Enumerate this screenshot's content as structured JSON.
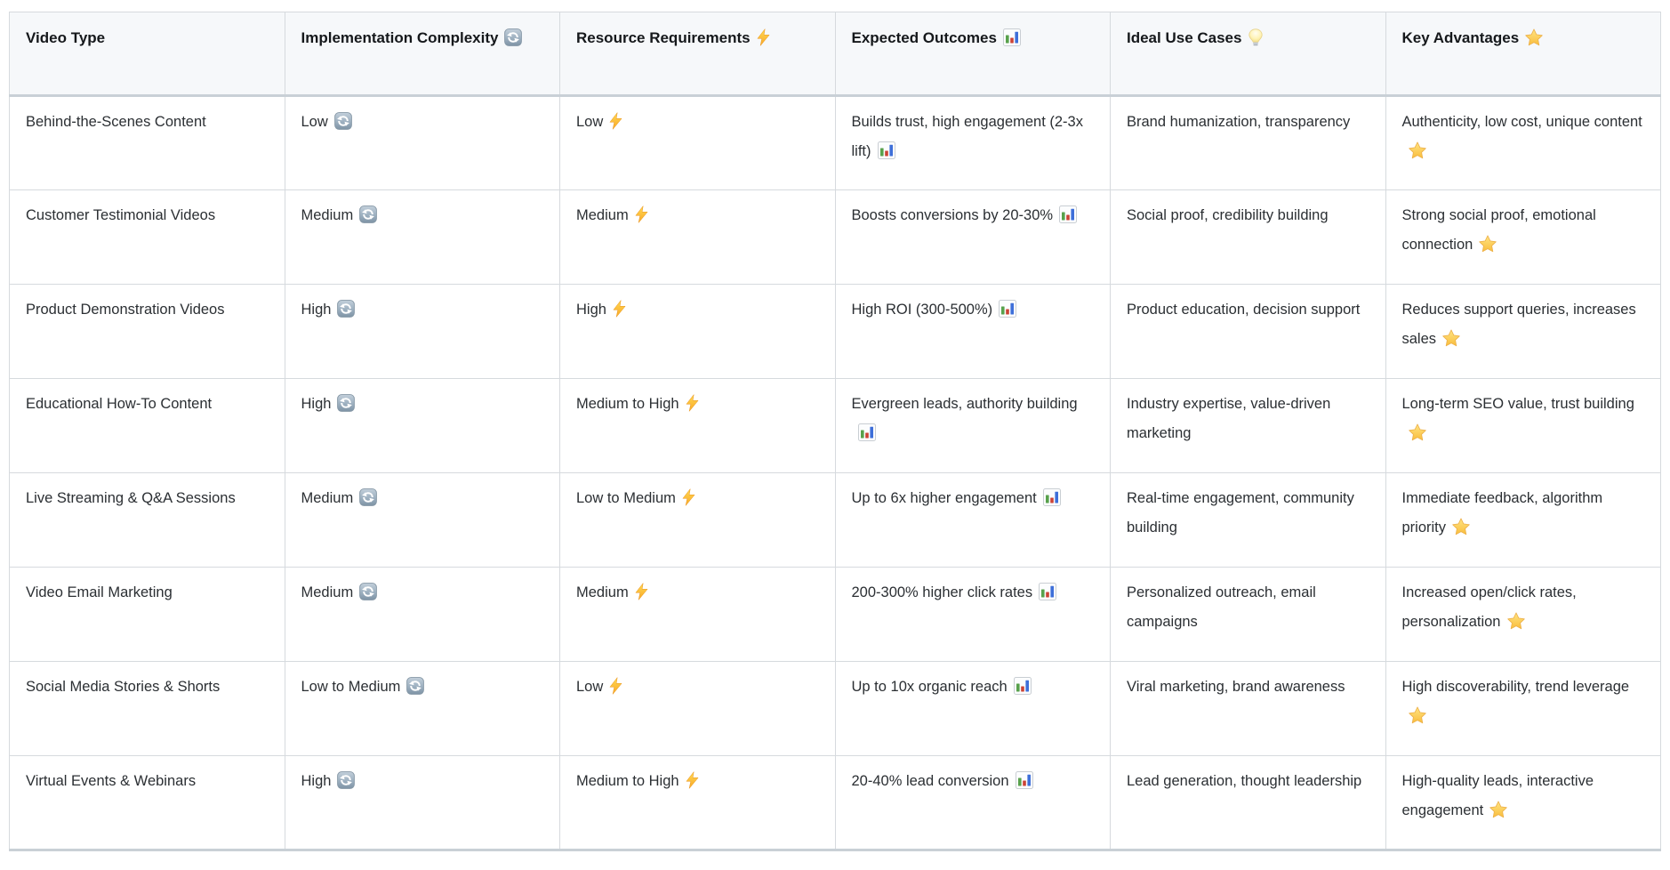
{
  "page": {
    "background": "#ffffff"
  },
  "colors": {
    "header_bg": "#f6f8fa",
    "border": "#d6dade",
    "border_heavy": "#c9d0d6",
    "header_text": "#15181b",
    "body_text": "#2b2f33",
    "refresh_icon_fill": "#9db0c0",
    "lightning_icon_fill": "#f9a825",
    "chart_bar_green": "#58a14c",
    "chart_bar_red": "#cb4335",
    "chart_bar_blue": "#3e6fd9",
    "bulb_icon_fill": "#fff3b8",
    "star_icon_fill": "#f9bd3c"
  },
  "table": {
    "columns": [
      {
        "key": "video-type",
        "label": "Video Type",
        "icon": null
      },
      {
        "key": "implementation-complexity",
        "label": "Implementation Complexity",
        "icon": "refresh-icon"
      },
      {
        "key": "resource-requirements",
        "label": "Resource Requirements",
        "icon": "lightning-icon"
      },
      {
        "key": "expected-outcomes",
        "label": "Expected Outcomes",
        "icon": "bar-chart-icon"
      },
      {
        "key": "ideal-use-cases",
        "label": "Ideal Use Cases",
        "icon": "bulb-icon"
      },
      {
        "key": "key-advantages",
        "label": "Key Advantages",
        "icon": "star-icon"
      }
    ],
    "rows": [
      {
        "cells": [
          {
            "text": "Behind-the-Scenes Content",
            "icon": null
          },
          {
            "text": "Low",
            "icon": "refresh-icon"
          },
          {
            "text": "Low",
            "icon": "lightning-icon"
          },
          {
            "text": "Builds trust, high engagement (2-3x lift)",
            "icon": "bar-chart-icon"
          },
          {
            "text": "Brand humanization, transparency",
            "icon": null
          },
          {
            "text": "Authenticity, low cost, unique content",
            "icon": "star-icon"
          }
        ]
      },
      {
        "cells": [
          {
            "text": "Customer Testimonial Videos",
            "icon": null
          },
          {
            "text": "Medium",
            "icon": "refresh-icon"
          },
          {
            "text": "Medium",
            "icon": "lightning-icon"
          },
          {
            "text": "Boosts conversions by 20-30%",
            "icon": "bar-chart-icon"
          },
          {
            "text": "Social proof, credibility building",
            "icon": null
          },
          {
            "text": "Strong social proof, emotional connection",
            "icon": "star-icon"
          }
        ]
      },
      {
        "cells": [
          {
            "text": "Product Demonstration Videos",
            "icon": null
          },
          {
            "text": "High",
            "icon": "refresh-icon"
          },
          {
            "text": "High",
            "icon": "lightning-icon"
          },
          {
            "text": "High ROI (300-500%)",
            "icon": "bar-chart-icon"
          },
          {
            "text": "Product education, decision support",
            "icon": null
          },
          {
            "text": "Reduces support queries, increases sales",
            "icon": "star-icon"
          }
        ]
      },
      {
        "cells": [
          {
            "text": "Educational How-To Content",
            "icon": null
          },
          {
            "text": "High",
            "icon": "refresh-icon"
          },
          {
            "text": "Medium to High",
            "icon": "lightning-icon"
          },
          {
            "text": "Evergreen leads, authority building",
            "icon": "bar-chart-icon"
          },
          {
            "text": "Industry expertise, value-driven marketing",
            "icon": null
          },
          {
            "text": "Long-term SEO value, trust building",
            "icon": "star-icon"
          }
        ]
      },
      {
        "cells": [
          {
            "text": "Live Streaming & Q&A Sessions",
            "icon": null
          },
          {
            "text": "Medium",
            "icon": "refresh-icon"
          },
          {
            "text": "Low to Medium",
            "icon": "lightning-icon"
          },
          {
            "text": "Up to 6x higher engagement",
            "icon": "bar-chart-icon"
          },
          {
            "text": "Real-time engagement, community building",
            "icon": null
          },
          {
            "text": "Immediate feedback, algorithm priority",
            "icon": "star-icon"
          }
        ]
      },
      {
        "cells": [
          {
            "text": "Video Email Marketing",
            "icon": null
          },
          {
            "text": "Medium",
            "icon": "refresh-icon"
          },
          {
            "text": "Medium",
            "icon": "lightning-icon"
          },
          {
            "text": "200-300% higher click rates",
            "icon": "bar-chart-icon"
          },
          {
            "text": "Personalized outreach, email campaigns",
            "icon": null
          },
          {
            "text": "Increased open/click rates, personalization",
            "icon": "star-icon"
          }
        ]
      },
      {
        "cells": [
          {
            "text": "Social Media Stories & Shorts",
            "icon": null
          },
          {
            "text": "Low to Medium",
            "icon": "refresh-icon"
          },
          {
            "text": "Low",
            "icon": "lightning-icon"
          },
          {
            "text": "Up to 10x organic reach",
            "icon": "bar-chart-icon"
          },
          {
            "text": "Viral marketing, brand awareness",
            "icon": null
          },
          {
            "text": "High discoverability, trend leverage",
            "icon": "star-icon"
          }
        ]
      },
      {
        "cells": [
          {
            "text": "Virtual Events & Webinars",
            "icon": null
          },
          {
            "text": "High",
            "icon": "refresh-icon"
          },
          {
            "text": "Medium to High",
            "icon": "lightning-icon"
          },
          {
            "text": "20-40% lead conversion",
            "icon": "bar-chart-icon"
          },
          {
            "text": "Lead generation, thought leadership",
            "icon": null
          },
          {
            "text": "High-quality leads, interactive engagement",
            "icon": "star-icon"
          }
        ]
      }
    ]
  }
}
